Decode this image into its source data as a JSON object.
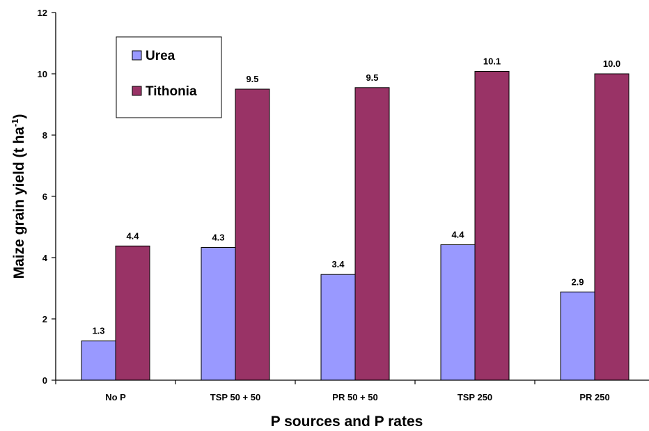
{
  "chart_data": {
    "type": "bar",
    "categories": [
      "No P",
      "TSP 50 + 50",
      "PR 50 + 50",
      "TSP 250",
      "PR 250"
    ],
    "series": [
      {
        "name": "Urea",
        "values": [
          1.28,
          4.33,
          3.45,
          4.42,
          2.88
        ],
        "labels": [
          "1.3",
          "4.3",
          "3.4",
          "4.4",
          "2.9"
        ],
        "color": "#9999ff"
      },
      {
        "name": "Tithonia",
        "values": [
          4.38,
          9.5,
          9.55,
          10.08,
          10.0
        ],
        "labels": [
          "4.4",
          "9.5",
          "9.5",
          "10.1",
          "10.0"
        ],
        "color": "#993366"
      }
    ],
    "xlabel": "P sources and P rates",
    "ylabel": "Maize grain yield (t ha",
    "ylabel_sup": "-1",
    "ylabel_end": ")",
    "ylim": [
      0,
      12
    ],
    "yticks": [
      0,
      2,
      4,
      6,
      8,
      10,
      12
    ],
    "legend_position": "top-left",
    "grid": false
  }
}
